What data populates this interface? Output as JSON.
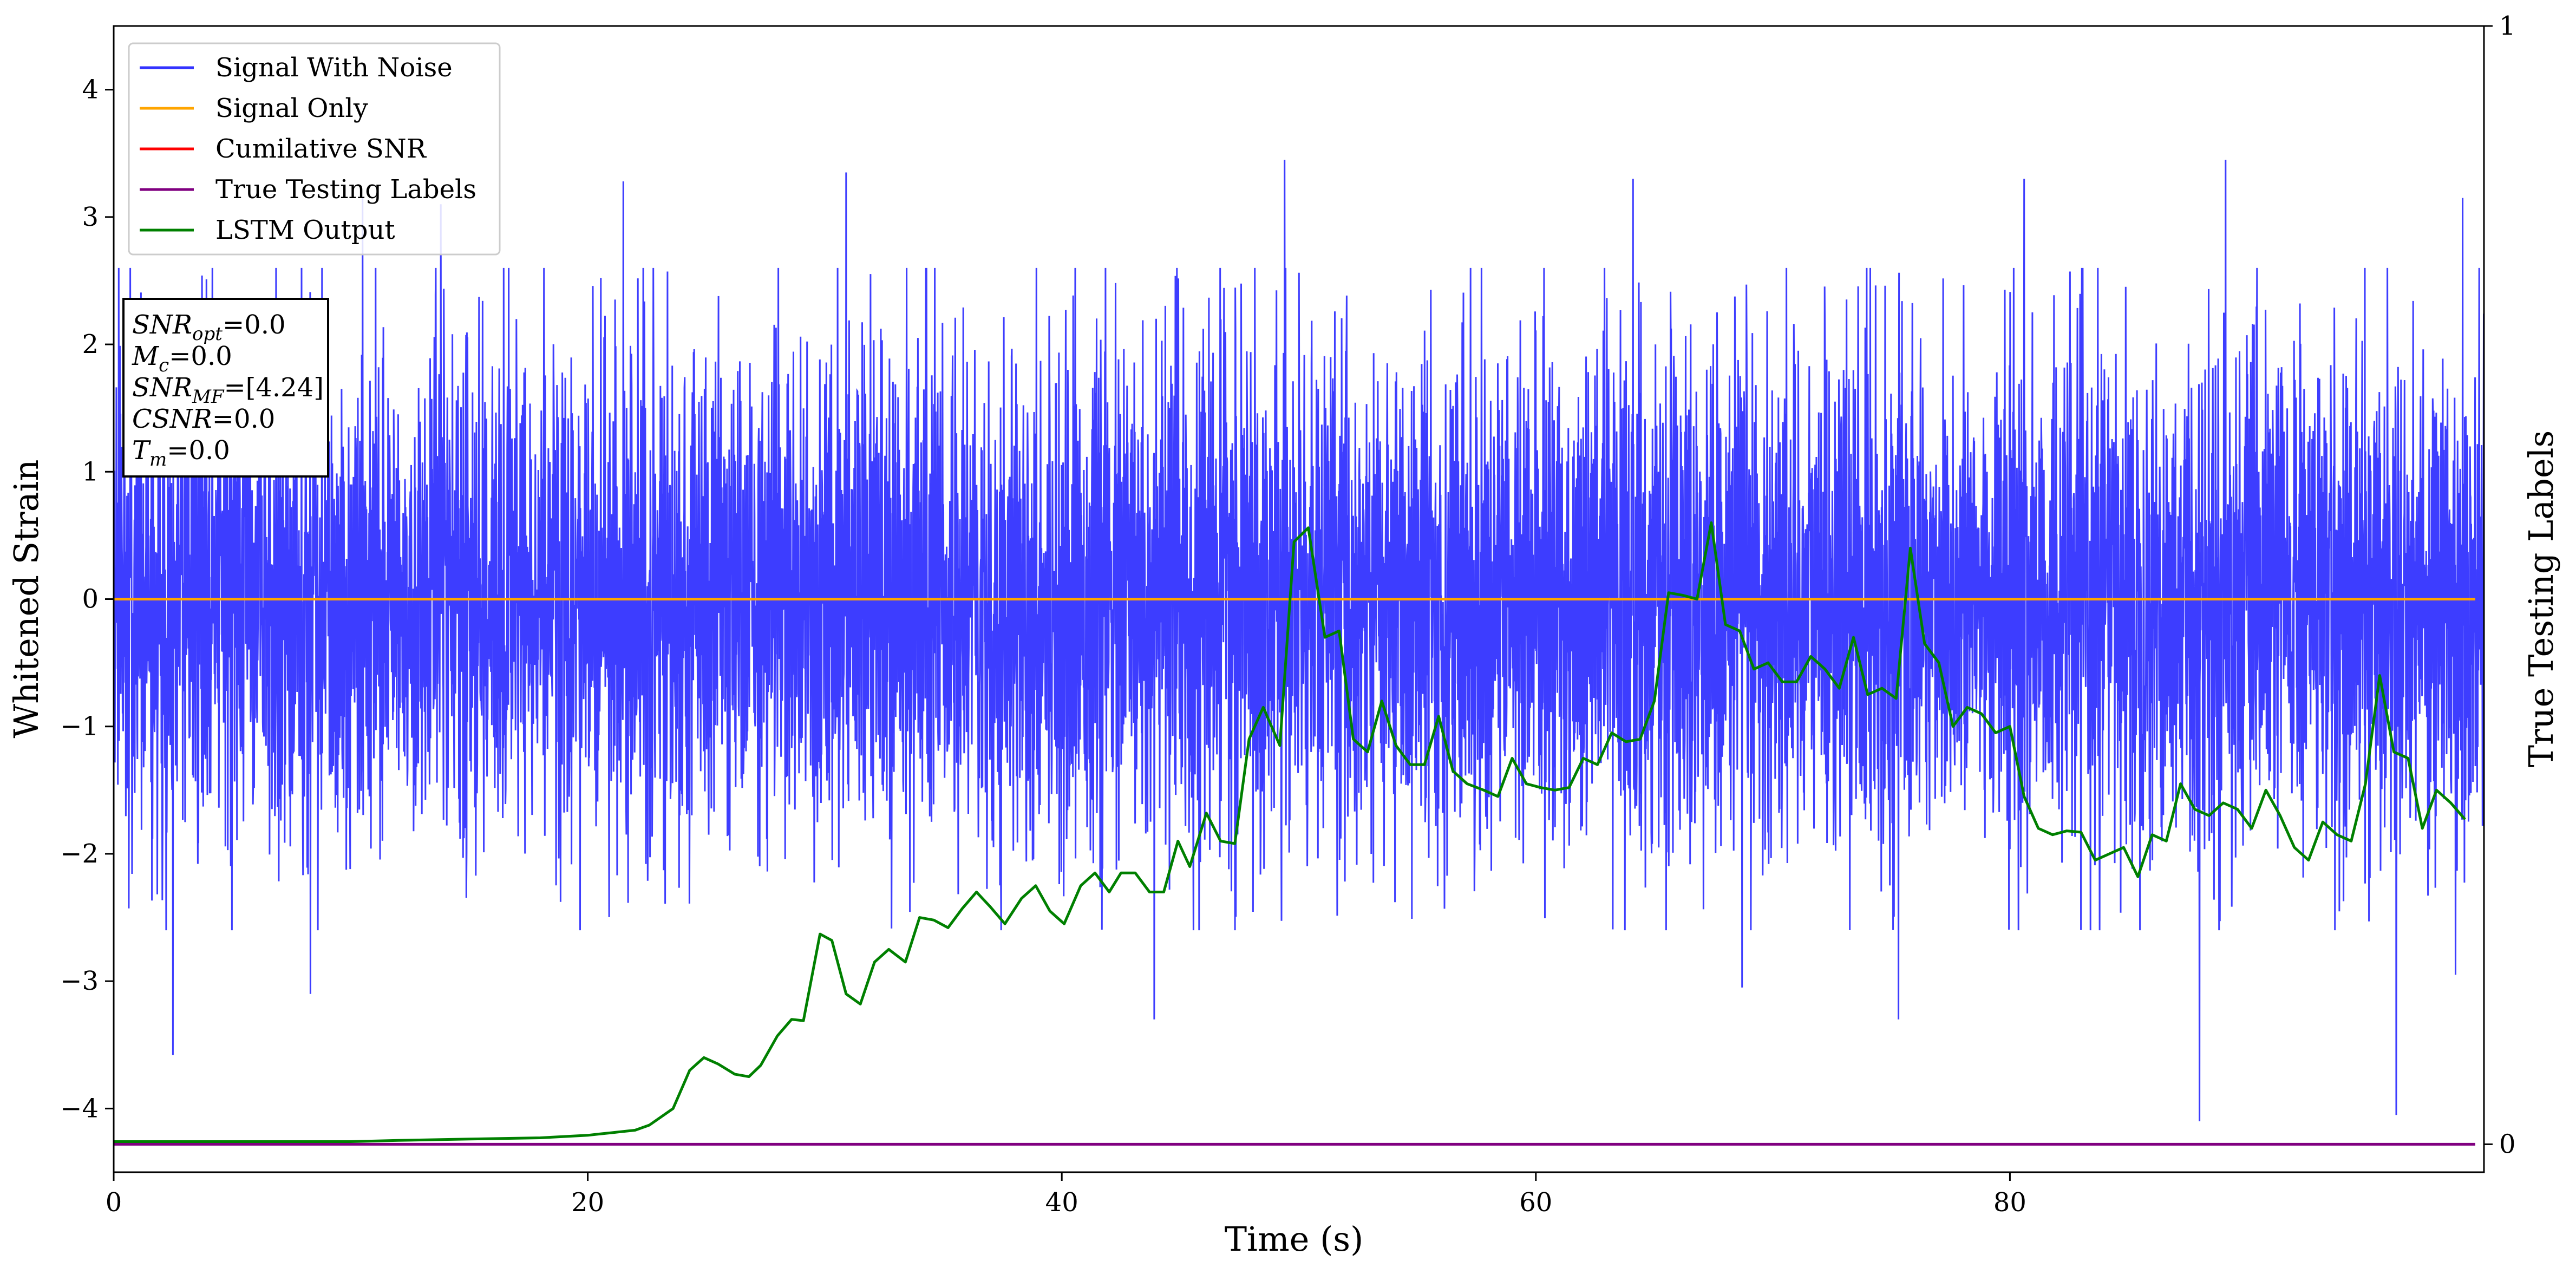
{
  "chart_data": {
    "type": "line",
    "xlabel": "Time (s)",
    "ylabel": "Whitened Strain",
    "y2label": "True Testing Labels",
    "xlim": [
      0,
      100
    ],
    "ylim": [
      -4.5,
      4.5
    ],
    "y2lim": [
      -0.025,
      1.0
    ],
    "xticks": [
      "0",
      "20",
      "40",
      "60",
      "80"
    ],
    "yticks": [
      "4",
      "3",
      "2",
      "1",
      "0",
      "−1",
      "−2",
      "−3",
      "−4"
    ],
    "y2ticks": [
      "1",
      "0"
    ],
    "grid": false,
    "legend_position": "upper-left",
    "series": [
      {
        "name": "Signal With Noise",
        "axis": "left",
        "color": "#3333ff",
        "description_stats": {
          "mean": 0.0,
          "std": 1.0,
          "max": 3.45,
          "min": -4.1
        },
        "spike_peaks": [
          [
            10.5,
            3.15
          ],
          [
            13.8,
            3.1
          ],
          [
            21.5,
            3.28
          ],
          [
            30.9,
            3.35
          ],
          [
            49.4,
            3.45
          ],
          [
            64.1,
            3.3
          ],
          [
            80.6,
            3.3
          ],
          [
            89.1,
            3.45
          ],
          [
            99.1,
            3.15
          ]
        ],
        "spike_troughs": [
          [
            2.5,
            -3.58
          ],
          [
            8.3,
            -3.1
          ],
          [
            43.9,
            -3.3
          ],
          [
            68.7,
            -3.05
          ],
          [
            75.3,
            -3.3
          ],
          [
            88.0,
            -4.1
          ],
          [
            96.3,
            -4.05
          ],
          [
            98.8,
            -2.95
          ]
        ]
      },
      {
        "name": "Signal Only",
        "axis": "left",
        "color": "#ffa500",
        "x": [
          0,
          100
        ],
        "y": [
          0,
          0
        ]
      },
      {
        "name": "Cumilative SNR",
        "axis": "left",
        "color": "#ff0000",
        "x": [],
        "y": []
      },
      {
        "name": "True Testing Labels",
        "axis": "right",
        "color": "#800080",
        "x": [
          0,
          100
        ],
        "y": [
          0,
          0
        ]
      },
      {
        "name": "LSTM Output",
        "axis": "left",
        "color": "#008000",
        "x": [
          0,
          10,
          12,
          15,
          18,
          19,
          20,
          20.5,
          21,
          22,
          22.6,
          23.6,
          24.3,
          24.9,
          25.5,
          26.2,
          26.8,
          27.3,
          28,
          28.6,
          29.1,
          29.8,
          30.3,
          30.9,
          31.5,
          32.1,
          32.7,
          33.4,
          34,
          34.6,
          35.2,
          35.8,
          36.4,
          37,
          37.6,
          38.3,
          38.9,
          39.5,
          40.1,
          40.8,
          41.4,
          42,
          42.5,
          43.1,
          43.7,
          44.3,
          44.9,
          45.4,
          46.1,
          46.7,
          47.3,
          47.9,
          48.5,
          49.2,
          49.8,
          50.4,
          51.1,
          51.7,
          52.3,
          52.9,
          53.5,
          54.1,
          54.7,
          55.3,
          55.9,
          56.5,
          57.1,
          57.8,
          58.4,
          59,
          59.6,
          60.2,
          60.8,
          61.4,
          62,
          62.6,
          63.2,
          63.8,
          64.4,
          65,
          65.6,
          66.2,
          66.8,
          67.4,
          68,
          68.6,
          69.2,
          69.8,
          70.4,
          71,
          71.6,
          72.2,
          72.8,
          73.4,
          74,
          74.6,
          75.2,
          75.8,
          76.4,
          77,
          77.6,
          78.2,
          78.8,
          79.4,
          80,
          80.6,
          81.2,
          81.8,
          82.4,
          83,
          83.6,
          84.2,
          84.8,
          85.4,
          86,
          86.6,
          87.2,
          87.8,
          88.4,
          89,
          89.6,
          90.2,
          90.8,
          91.4,
          92,
          92.6,
          93.2,
          93.8,
          94.4,
          95,
          95.6,
          96.2,
          96.8,
          97.4,
          98,
          98.6,
          99.2
        ],
        "y": [
          -4.26,
          -4.26,
          -4.25,
          -4.24,
          -4.23,
          -4.22,
          -4.21,
          -4.2,
          -4.19,
          -4.17,
          -4.13,
          -4.0,
          -3.7,
          -3.6,
          -3.65,
          -3.73,
          -3.75,
          -3.66,
          -3.43,
          -3.3,
          -3.31,
          -2.63,
          -2.68,
          -3.1,
          -3.18,
          -2.85,
          -2.75,
          -2.85,
          -2.5,
          -2.52,
          -2.58,
          -2.43,
          -2.3,
          -2.42,
          -2.55,
          -2.35,
          -2.25,
          -2.45,
          -2.55,
          -2.25,
          -2.15,
          -2.3,
          -2.15,
          -2.15,
          -2.3,
          -2.3,
          -1.9,
          -2.1,
          -1.68,
          -1.9,
          -1.92,
          -1.1,
          -0.85,
          -1.15,
          0.45,
          0.56,
          -0.3,
          -0.25,
          -1.1,
          -1.2,
          -0.8,
          -1.15,
          -1.3,
          -1.3,
          -0.92,
          -1.35,
          -1.45,
          -1.5,
          -1.55,
          -1.25,
          -1.45,
          -1.48,
          -1.5,
          -1.48,
          -1.25,
          -1.3,
          -1.05,
          -1.12,
          -1.1,
          -0.8,
          0.05,
          0.03,
          0.0,
          0.6,
          -0.2,
          -0.25,
          -0.55,
          -0.5,
          -0.65,
          -0.65,
          -0.45,
          -0.55,
          -0.7,
          -0.3,
          -0.75,
          -0.7,
          -0.78,
          0.4,
          -0.35,
          -0.5,
          -1.0,
          -0.85,
          -0.9,
          -1.05,
          -1.0,
          -1.55,
          -1.8,
          -1.85,
          -1.82,
          -1.83,
          -2.05,
          -2.0,
          -1.95,
          -2.18,
          -1.85,
          -1.9,
          -1.45,
          -1.65,
          -1.7,
          -1.6,
          -1.65,
          -1.8,
          -1.5,
          -1.7,
          -1.95,
          -2.05,
          -1.75,
          -1.85,
          -1.9,
          -1.45,
          -0.6,
          -1.2,
          -1.25,
          -1.8,
          -1.5,
          -1.6,
          -1.73
        ]
      }
    ],
    "annotation_lines": [
      {
        "label": "SNR",
        "sub": "opt",
        "value": "=0.0"
      },
      {
        "label": "M",
        "sub": "c",
        "value": "=0.0"
      },
      {
        "label": "SNR",
        "sub": "MF",
        "value": "=[4.24]"
      },
      {
        "label": "CSNR",
        "sub": "",
        "value": "=0.0"
      },
      {
        "label": "T",
        "sub": "m",
        "value": "=0.0"
      }
    ]
  }
}
